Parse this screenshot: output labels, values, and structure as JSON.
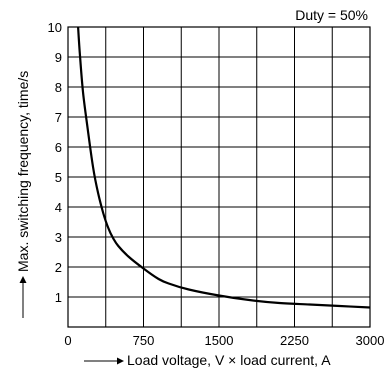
{
  "chart_data": {
    "type": "line",
    "title": "",
    "annotation": "Duty = 50%",
    "xlabel": "Load voltage, V × load current, A",
    "ylabel": "Max. switching frequency, time/s",
    "xlim": [
      0,
      3000
    ],
    "ylim": [
      0,
      10
    ],
    "x_ticks": [
      0,
      750,
      1500,
      2250,
      3000
    ],
    "x_tick_labels": [
      "0",
      "750",
      "1500",
      "2250",
      "3000"
    ],
    "x_grid_step": 375,
    "y_ticks": [
      1,
      2,
      3,
      4,
      5,
      6,
      7,
      8,
      9,
      10
    ],
    "y_tick_labels": [
      "1",
      "2",
      "3",
      "4",
      "5",
      "6",
      "7",
      "8",
      "9",
      "10"
    ],
    "grid": true,
    "series": [
      {
        "x": [
          100,
          120,
          150,
          200,
          250,
          300,
          350,
          400,
          450,
          500,
          600,
          750,
          900,
          1000,
          1200,
          1500,
          1800,
          2100,
          2400,
          2700,
          3000
        ],
        "y": [
          10,
          9.0,
          7.8,
          6.5,
          5.3,
          4.45,
          3.8,
          3.3,
          2.95,
          2.7,
          2.35,
          1.95,
          1.6,
          1.45,
          1.25,
          1.05,
          0.9,
          0.8,
          0.75,
          0.7,
          0.65
        ]
      }
    ]
  }
}
